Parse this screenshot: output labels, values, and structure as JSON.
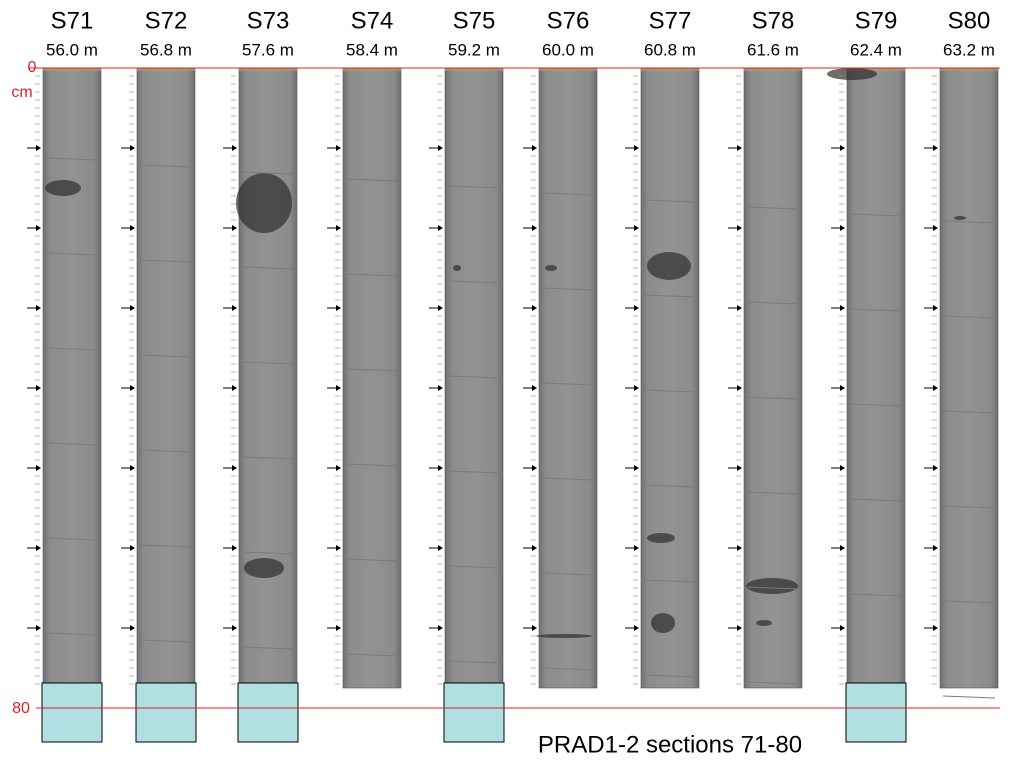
{
  "sections": [
    {
      "label": "S71",
      "depth": "56.0 m"
    },
    {
      "label": "S72",
      "depth": "56.8 m"
    },
    {
      "label": "S73",
      "depth": "57.6 m"
    },
    {
      "label": "S74",
      "depth": "58.4 m"
    },
    {
      "label": "S75",
      "depth": "59.2 m"
    },
    {
      "label": "S76",
      "depth": "60.0 m"
    },
    {
      "label": "S77",
      "depth": "60.8 m"
    },
    {
      "label": "S78",
      "depth": "61.6 m"
    },
    {
      "label": "S79",
      "depth": "62.4 m"
    },
    {
      "label": "S80",
      "depth": "63.2 m"
    }
  ],
  "scale": {
    "top": "0",
    "unit": "cm",
    "bottom": "80"
  },
  "title": "PRAD1-2 sections 71-80"
}
